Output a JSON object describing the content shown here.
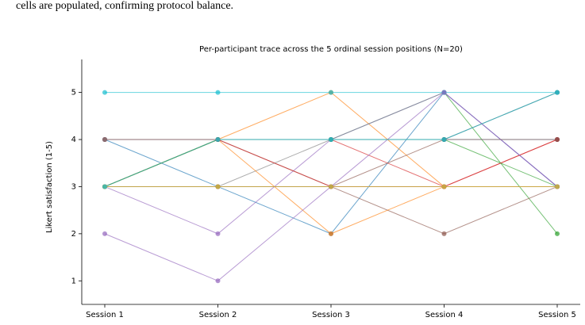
{
  "text": "cells are populated, confirming protocol balance.",
  "chart_data": {
    "type": "line",
    "title": "Per-participant trace across the 5 ordinal session positions (N=20)",
    "ylabel": "Likert satisfaction (1-5)",
    "categories": [
      "Session 1",
      "Session 2",
      "Session 3",
      "Session 4",
      "Session 5"
    ],
    "ylim": [
      0.5,
      5.7
    ],
    "yticks": [
      1,
      2,
      3,
      4,
      5
    ],
    "series": [
      {
        "color": "#1f77b4",
        "values": [
          4,
          3,
          2,
          5,
          3
        ]
      },
      {
        "color": "#ff7f0e",
        "values": [
          3,
          4,
          5,
          3,
          3
        ]
      },
      {
        "color": "#2ca02c",
        "values": [
          3,
          4,
          4,
          5,
          2
        ]
      },
      {
        "color": "#d62728",
        "values": [
          3,
          4,
          4,
          3,
          4
        ]
      },
      {
        "color": "#9467bd",
        "values": [
          3,
          2,
          4,
          5,
          3
        ]
      },
      {
        "color": "#8c564b",
        "values": [
          4,
          4,
          3,
          2,
          3
        ]
      },
      {
        "color": "#e377c2",
        "values": [
          3,
          3,
          3,
          3,
          3
        ]
      },
      {
        "color": "#7f7f7f",
        "values": [
          3,
          3,
          4,
          4,
          5
        ]
      },
      {
        "color": "#bcbd22",
        "values": [
          3,
          3,
          3,
          3,
          3
        ]
      },
      {
        "color": "#17becf",
        "values": [
          5,
          5,
          5,
          5,
          5
        ]
      },
      {
        "color": "#1f77b4",
        "values": [
          4,
          4,
          4,
          4,
          4
        ]
      },
      {
        "color": "#ff7f0e",
        "values": [
          3,
          4,
          2,
          3,
          3
        ]
      },
      {
        "color": "#2ca02c",
        "values": [
          3,
          4,
          4,
          4,
          3
        ]
      },
      {
        "color": "#d62728",
        "values": [
          4,
          4,
          3,
          3,
          4
        ]
      },
      {
        "color": "#9467bd",
        "values": [
          2,
          1,
          3,
          5,
          3
        ]
      },
      {
        "color": "#8c564b",
        "values": [
          3,
          3,
          3,
          4,
          4
        ]
      },
      {
        "color": "#e377c2",
        "values": [
          3,
          3,
          3,
          3,
          3
        ]
      },
      {
        "color": "#7f7f7f",
        "values": [
          4,
          4,
          4,
          4,
          5
        ]
      },
      {
        "color": "#bcbd22",
        "values": [
          3,
          3,
          3,
          3,
          3
        ]
      },
      {
        "color": "#17becf",
        "values": [
          3,
          4,
          4,
          4,
          5
        ]
      }
    ]
  }
}
